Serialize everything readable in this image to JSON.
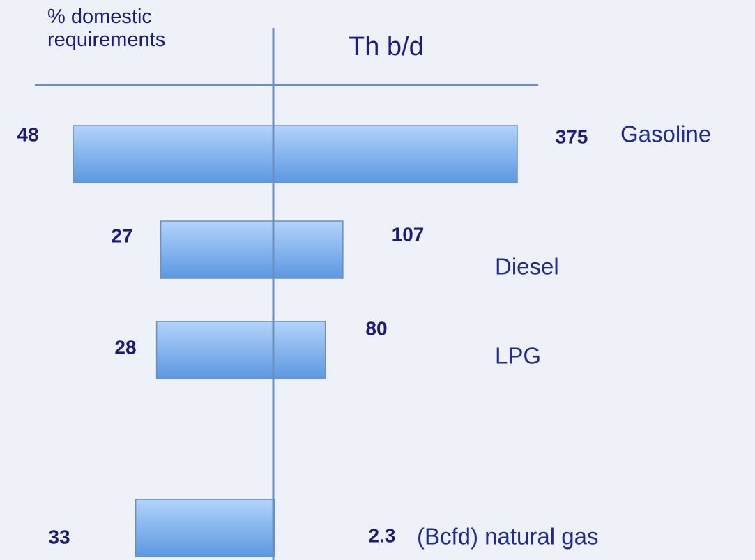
{
  "chart_data": {
    "type": "butterfly",
    "categories": [
      "Gasoline",
      "Diesel",
      "LPG",
      "(Bcfd) natural gas"
    ],
    "series": [
      {
        "name": "% domestic requirements",
        "color": "#7fb1ee",
        "values": [
          48,
          27,
          28,
          33
        ]
      },
      {
        "name": "Th b/d",
        "color": "#7fb1ee",
        "values": [
          375,
          107,
          80,
          2.3
        ]
      }
    ]
  }
}
